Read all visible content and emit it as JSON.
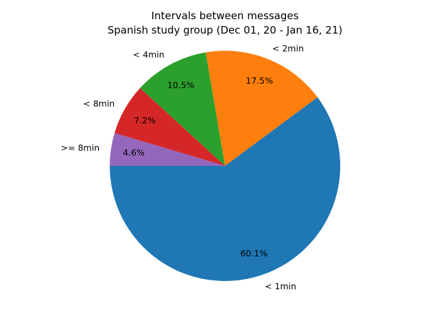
{
  "chart_data": {
    "type": "pie",
    "title": "Intervals between messages",
    "subtitle": "Spanish study group (Dec 01, 20 - Jan 16, 21)",
    "slices": [
      {
        "label": "< 1min",
        "value": 60.1,
        "pct_label": "60.1%",
        "color": "#1f77b4"
      },
      {
        "label": "< 2min",
        "value": 17.5,
        "pct_label": "17.5%",
        "color": "#ff7f0e"
      },
      {
        "label": "< 4min",
        "value": 10.5,
        "pct_label": "10.5%",
        "color": "#2ca02c"
      },
      {
        "label": "< 8min",
        "value": 7.2,
        "pct_label": "7.2%",
        "color": "#d62728"
      },
      {
        "label": ">= 8min",
        "value": 4.6,
        "pct_label": "4.6%",
        "color": "#9467bd"
      }
    ],
    "start_angle_deg": 180,
    "direction": "counterclockwise",
    "legend": "none"
  }
}
